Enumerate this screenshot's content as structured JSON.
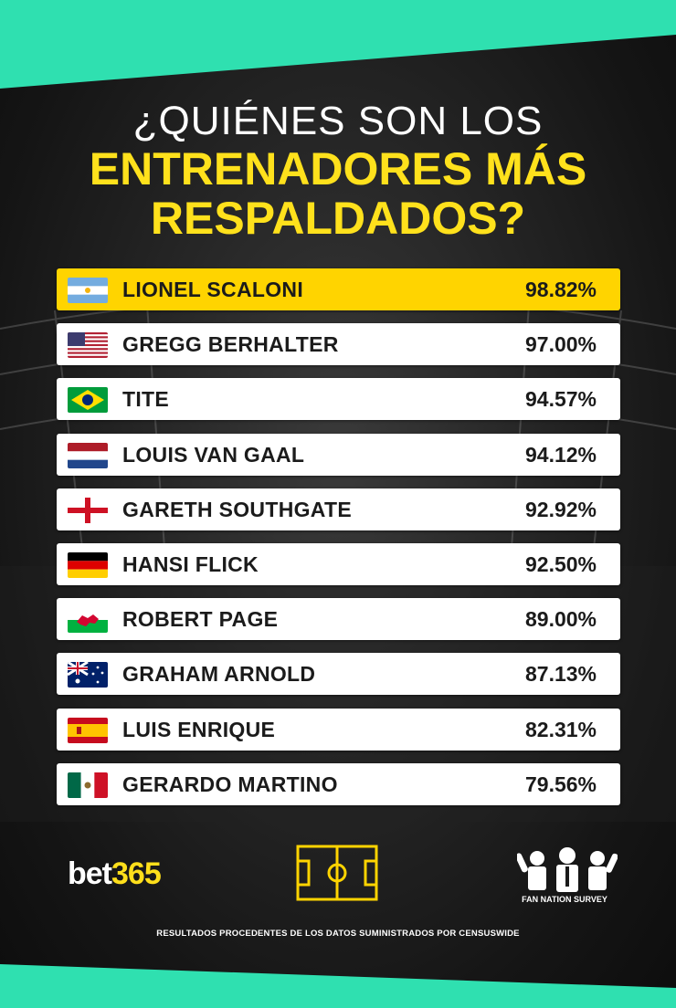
{
  "title": {
    "line1": "¿QUIÉNES SON LOS",
    "line2": "ENTRENADORES MÁS",
    "line3": "RESPALDADOS?"
  },
  "colors": {
    "accent": "#ffd400",
    "band": "#2fe0b0",
    "background": "#1e1e1e"
  },
  "coaches": [
    {
      "name": "LIONEL SCALONI",
      "percent": "98.82%",
      "flag": "argentina-flag-icon",
      "highlight": true
    },
    {
      "name": "GREGG BERHALTER",
      "percent": "97.00%",
      "flag": "usa-flag-icon"
    },
    {
      "name": "TITE",
      "percent": "94.57%",
      "flag": "brazil-flag-icon"
    },
    {
      "name": "LOUIS VAN GAAL",
      "percent": "94.12%",
      "flag": "netherlands-flag-icon"
    },
    {
      "name": "GARETH SOUTHGATE",
      "percent": "92.92%",
      "flag": "england-flag-icon"
    },
    {
      "name": "HANSI FLICK",
      "percent": "92.50%",
      "flag": "germany-flag-icon"
    },
    {
      "name": "ROBERT PAGE",
      "percent": "89.00%",
      "flag": "wales-flag-icon"
    },
    {
      "name": "GRAHAM ARNOLD",
      "percent": "87.13%",
      "flag": "australia-flag-icon"
    },
    {
      "name": "LUIS ENRIQUE",
      "percent": "82.31%",
      "flag": "spain-flag-icon"
    },
    {
      "name": "GERARDO MARTINO",
      "percent": "79.56%",
      "flag": "mexico-flag-icon"
    }
  ],
  "logos": {
    "bet365_a": "bet",
    "bet365_b": "365",
    "fan_nation": "FAN NATION SURVEY"
  },
  "footer": "RESULTADOS PROCEDENTES DE LOS DATOS SUMINISTRADOS POR CENSUSWIDE"
}
